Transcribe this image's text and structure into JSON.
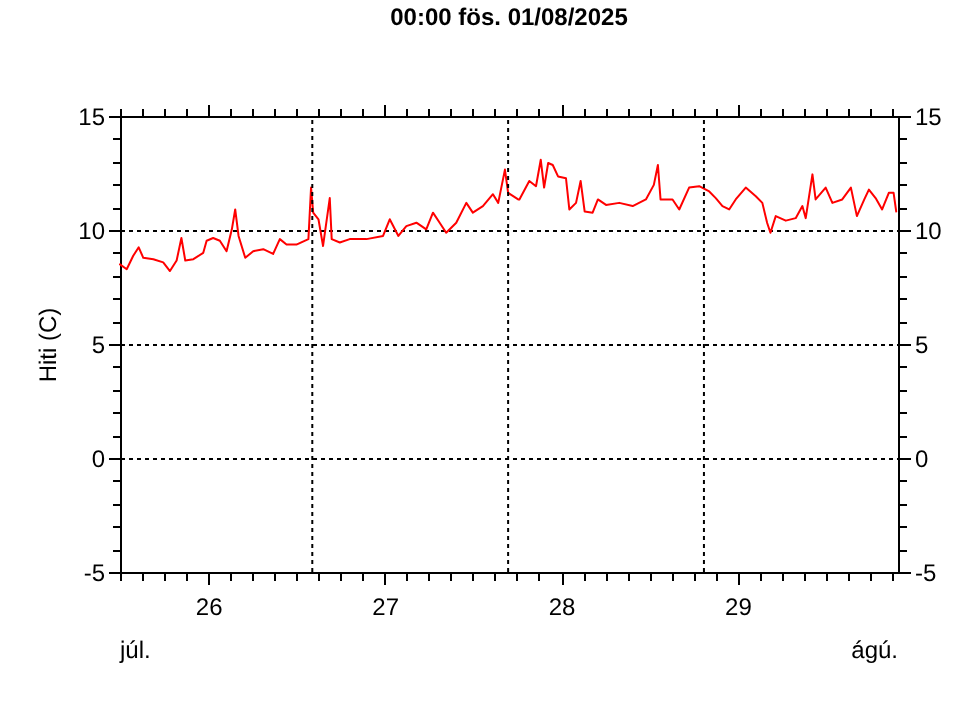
{
  "chart_data": {
    "type": "line",
    "title": "00:00   fös. 01/08/2025",
    "ylabel": "Hiti (C)",
    "annotations": [
      "júl.",
      "ágú."
    ],
    "xlim": [
      26,
      30.41
    ],
    "xticks": [
      {
        "value": 26,
        "label": null
      },
      {
        "value": 26.125,
        "label": null
      },
      {
        "value": 26.25,
        "label": null
      },
      {
        "value": 26.375,
        "label": null
      },
      {
        "value": 26.5,
        "label": "26"
      },
      {
        "value": 26.625,
        "label": null
      },
      {
        "value": 26.75,
        "label": null
      },
      {
        "value": 26.875,
        "label": null
      },
      {
        "value": 27,
        "label": null
      },
      {
        "value": 27.125,
        "label": null
      },
      {
        "value": 27.25,
        "label": null
      },
      {
        "value": 27.375,
        "label": null
      },
      {
        "value": 27.5,
        "label": "27"
      },
      {
        "value": 27.625,
        "label": null
      },
      {
        "value": 27.75,
        "label": null
      },
      {
        "value": 27.875,
        "label": null
      },
      {
        "value": 28,
        "label": null
      },
      {
        "value": 28.125,
        "label": null
      },
      {
        "value": 28.25,
        "label": null
      },
      {
        "value": 28.375,
        "label": null
      },
      {
        "value": 28.5,
        "label": "28"
      },
      {
        "value": 28.625,
        "label": null
      },
      {
        "value": 28.75,
        "label": null
      },
      {
        "value": 28.875,
        "label": null
      },
      {
        "value": 29,
        "label": null
      },
      {
        "value": 29.125,
        "label": null
      },
      {
        "value": 29.25,
        "label": null
      },
      {
        "value": 29.375,
        "label": null
      },
      {
        "value": 29.5,
        "label": "29"
      },
      {
        "value": 29.625,
        "label": null
      },
      {
        "value": 29.75,
        "label": null
      },
      {
        "value": 29.875,
        "label": null
      },
      {
        "value": 30,
        "label": null
      },
      {
        "value": 30.125,
        "label": null
      },
      {
        "value": 30.25,
        "label": null
      },
      {
        "value": 30.375,
        "label": null
      }
    ],
    "ylim": [
      -5,
      15
    ],
    "yticks": [
      -5,
      {
        "value": -4,
        "label": null
      },
      {
        "value": -3,
        "label": null
      },
      {
        "value": -2,
        "label": null
      },
      {
        "value": -1,
        "label": null
      },
      0,
      {
        "value": 1,
        "label": null
      },
      {
        "value": 2,
        "label": null
      },
      {
        "value": 3,
        "label": null
      },
      {
        "value": 4,
        "label": null
      },
      5,
      {
        "value": 6,
        "label": null
      },
      {
        "value": 7,
        "label": null
      },
      {
        "value": 8,
        "label": null
      },
      {
        "value": 9,
        "label": null
      },
      10,
      {
        "value": 11,
        "label": null
      },
      {
        "value": 12,
        "label": null
      },
      {
        "value": 13,
        "label": null
      },
      {
        "value": 14,
        "label": null
      },
      15
    ],
    "y2lim": [
      -5,
      15
    ],
    "y2ticks": [
      -5,
      {
        "value": -4,
        "label": null
      },
      {
        "value": -3,
        "label": null
      },
      {
        "value": -2,
        "label": null
      },
      {
        "value": -1,
        "label": null
      },
      0,
      {
        "value": 1,
        "label": null
      },
      {
        "value": 2,
        "label": null
      },
      {
        "value": 3,
        "label": null
      },
      {
        "value": 4,
        "label": null
      },
      5,
      {
        "value": 6,
        "label": null
      },
      {
        "value": 7,
        "label": null
      },
      {
        "value": 8,
        "label": null
      },
      {
        "value": 9,
        "label": null
      },
      10,
      {
        "value": 11,
        "label": null
      },
      {
        "value": 12,
        "label": null
      },
      {
        "value": 13,
        "label": null
      },
      {
        "value": 14,
        "label": null
      },
      15
    ],
    "grid": "y",
    "marker": "none",
    "line_style": "solid",
    "ref_lines": [
      {
        "axis": "x",
        "value": 27.09,
        "line_style": "dotted",
        "color": "#000000"
      },
      {
        "axis": "x",
        "value": 28.2,
        "line_style": "dotted",
        "color": "#000000"
      },
      {
        "axis": "x",
        "value": 29.31,
        "line_style": "dotted",
        "color": "#000000"
      }
    ],
    "series": [
      {
        "color": "#ff0000",
        "x": [
          26.0,
          26.038,
          26.075,
          26.106,
          26.132,
          26.189,
          26.245,
          26.283,
          26.321,
          26.348,
          26.37,
          26.416,
          26.472,
          26.491,
          26.528,
          26.566,
          26.604,
          26.634,
          26.653,
          26.672,
          26.71,
          26.755,
          26.812,
          26.868,
          26.906,
          26.944,
          27.0,
          27.068,
          27.083,
          27.095,
          27.125,
          27.151,
          27.189,
          27.2,
          27.246,
          27.302,
          27.397,
          27.491,
          27.529,
          27.578,
          27.623,
          27.68,
          27.736,
          27.774,
          27.812,
          27.849,
          27.906,
          27.963,
          28.0,
          28.057,
          28.114,
          28.144,
          28.182,
          28.2,
          28.257,
          28.264,
          28.32,
          28.358,
          28.385,
          28.404,
          28.427,
          28.453,
          28.483,
          28.528,
          28.547,
          28.585,
          28.611,
          28.634,
          28.679,
          28.709,
          28.755,
          28.83,
          28.906,
          28.981,
          29.026,
          29.049,
          29.064,
          29.132,
          29.17,
          29.226,
          29.283,
          29.34,
          29.377,
          29.415,
          29.453,
          29.49,
          29.547,
          29.604,
          29.641,
          29.668,
          29.687,
          29.717,
          29.774,
          29.83,
          29.868,
          29.887,
          29.925,
          29.943,
          30.0,
          30.038,
          30.094,
          30.143,
          30.177,
          30.219,
          30.245,
          30.283,
          30.32,
          30.358,
          30.385,
          30.4
        ],
        "values": [
          8.49,
          8.28,
          8.87,
          9.24,
          8.78,
          8.72,
          8.58,
          8.2,
          8.66,
          9.65,
          8.66,
          8.72,
          9.0,
          9.53,
          9.65,
          9.53,
          9.07,
          10.03,
          10.9,
          9.74,
          8.78,
          9.07,
          9.16,
          8.95,
          9.6,
          9.36,
          9.36,
          9.6,
          11.86,
          10.76,
          10.47,
          9.3,
          11.4,
          9.6,
          9.45,
          9.6,
          9.6,
          9.74,
          10.47,
          9.74,
          10.17,
          10.32,
          10.03,
          10.76,
          10.32,
          9.88,
          10.32,
          11.19,
          10.76,
          11.05,
          11.57,
          11.19,
          12.65,
          11.63,
          11.34,
          11.34,
          12.15,
          11.92,
          13.08,
          11.86,
          12.94,
          12.85,
          12.35,
          12.27,
          10.9,
          11.19,
          12.15,
          10.81,
          10.76,
          11.34,
          11.1,
          11.19,
          11.05,
          11.34,
          11.98,
          12.85,
          11.34,
          11.34,
          10.9,
          11.86,
          11.92,
          11.69,
          11.4,
          11.05,
          10.9,
          11.34,
          11.86,
          11.48,
          11.19,
          10.32,
          9.88,
          10.61,
          10.41,
          10.52,
          11.05,
          10.52,
          12.44,
          11.34,
          11.86,
          11.19,
          11.34,
          11.86,
          10.61,
          11.34,
          11.77,
          11.4,
          10.9,
          11.63,
          11.63,
          10.81
        ]
      }
    ]
  }
}
